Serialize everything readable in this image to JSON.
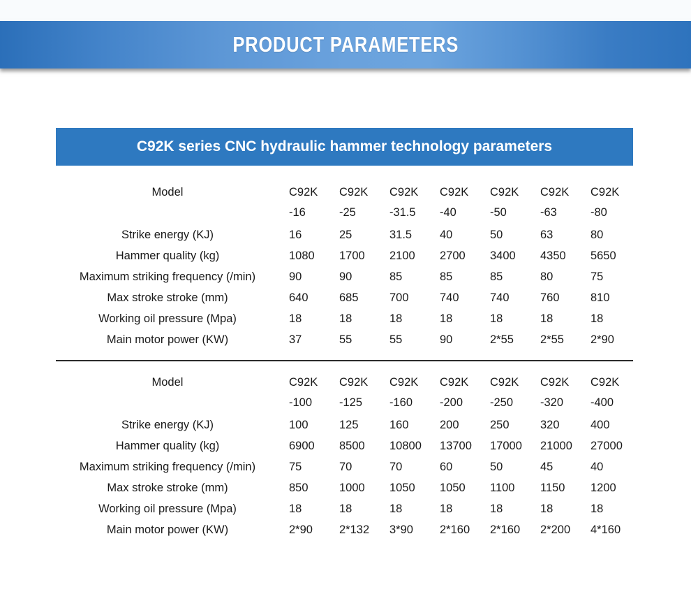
{
  "page": {
    "banner_title": "PRODUCT PARAMETERS",
    "table_title": "C92K series CNC hydraulic hammer technology parameters"
  },
  "colors": {
    "banner_blue_dark": "#2b6fb9",
    "banner_blue_light": "#6ca4de",
    "title_bar_blue": "#2e79c0",
    "text": "#1a1a1a",
    "divider": "#2b2b2b"
  },
  "tables": [
    {
      "model_label": "Model",
      "columns": [
        {
          "prefix": "C92K",
          "suffix": "-16"
        },
        {
          "prefix": "C92K",
          "suffix": "-25"
        },
        {
          "prefix": "C92K",
          "suffix": "-31.5"
        },
        {
          "prefix": "C92K",
          "suffix": "-40"
        },
        {
          "prefix": "C92K",
          "suffix": "-50"
        },
        {
          "prefix": "C92K",
          "suffix": "-63"
        },
        {
          "prefix": "C92K",
          "suffix": "-80"
        }
      ],
      "rows": [
        {
          "label": "Strike energy (KJ)",
          "values": [
            "16",
            "25",
            "31.5",
            "40",
            "50",
            "63",
            "80"
          ]
        },
        {
          "label": "Hammer quality (kg)",
          "values": [
            "1080",
            "1700",
            "2100",
            "2700",
            "3400",
            "4350",
            "5650"
          ]
        },
        {
          "label": "Maximum striking frequency (/min)",
          "values": [
            "90",
            "90",
            "85",
            "85",
            "85",
            "80",
            "75"
          ]
        },
        {
          "label": "Max stroke stroke (mm)",
          "values": [
            "640",
            "685",
            "700",
            "740",
            "740",
            "760",
            "810"
          ]
        },
        {
          "label": "Working oil pressure (Mpa)",
          "values": [
            "18",
            "18",
            "18",
            "18",
            "18",
            "18",
            "18"
          ]
        },
        {
          "label": "Main motor power (KW)",
          "values": [
            "37",
            "55",
            "55",
            "90",
            "2*55",
            "2*55",
            "2*90"
          ]
        }
      ]
    },
    {
      "model_label": "Model",
      "columns": [
        {
          "prefix": "C92K",
          "suffix": "-100"
        },
        {
          "prefix": "C92K",
          "suffix": "-125"
        },
        {
          "prefix": "C92K",
          "suffix": "-160"
        },
        {
          "prefix": "C92K",
          "suffix": "-200"
        },
        {
          "prefix": "C92K",
          "suffix": "-250"
        },
        {
          "prefix": "C92K",
          "suffix": "-320"
        },
        {
          "prefix": "C92K",
          "suffix": "-400"
        }
      ],
      "rows": [
        {
          "label": "Strike energy (KJ)",
          "values": [
            "100",
            "125",
            "160",
            "200",
            "250",
            "320",
            "400"
          ]
        },
        {
          "label": "Hammer quality (kg)",
          "values": [
            "6900",
            "8500",
            "10800",
            "13700",
            "17000",
            "21000",
            "27000"
          ]
        },
        {
          "label": "Maximum striking frequency (/min)",
          "values": [
            "75",
            "70",
            "70",
            "60",
            "50",
            "45",
            "40"
          ]
        },
        {
          "label": "Max stroke stroke (mm)",
          "values": [
            "850",
            "1000",
            "1050",
            "1050",
            "1100",
            "1150",
            "1200"
          ]
        },
        {
          "label": "Working oil pressure (Mpa)",
          "values": [
            "18",
            "18",
            "18",
            "18",
            "18",
            "18",
            "18"
          ]
        },
        {
          "label": "Main motor power (KW)",
          "values": [
            "2*90",
            "2*132",
            "3*90",
            "2*160",
            "2*160",
            "2*200",
            "4*160"
          ]
        }
      ]
    }
  ]
}
